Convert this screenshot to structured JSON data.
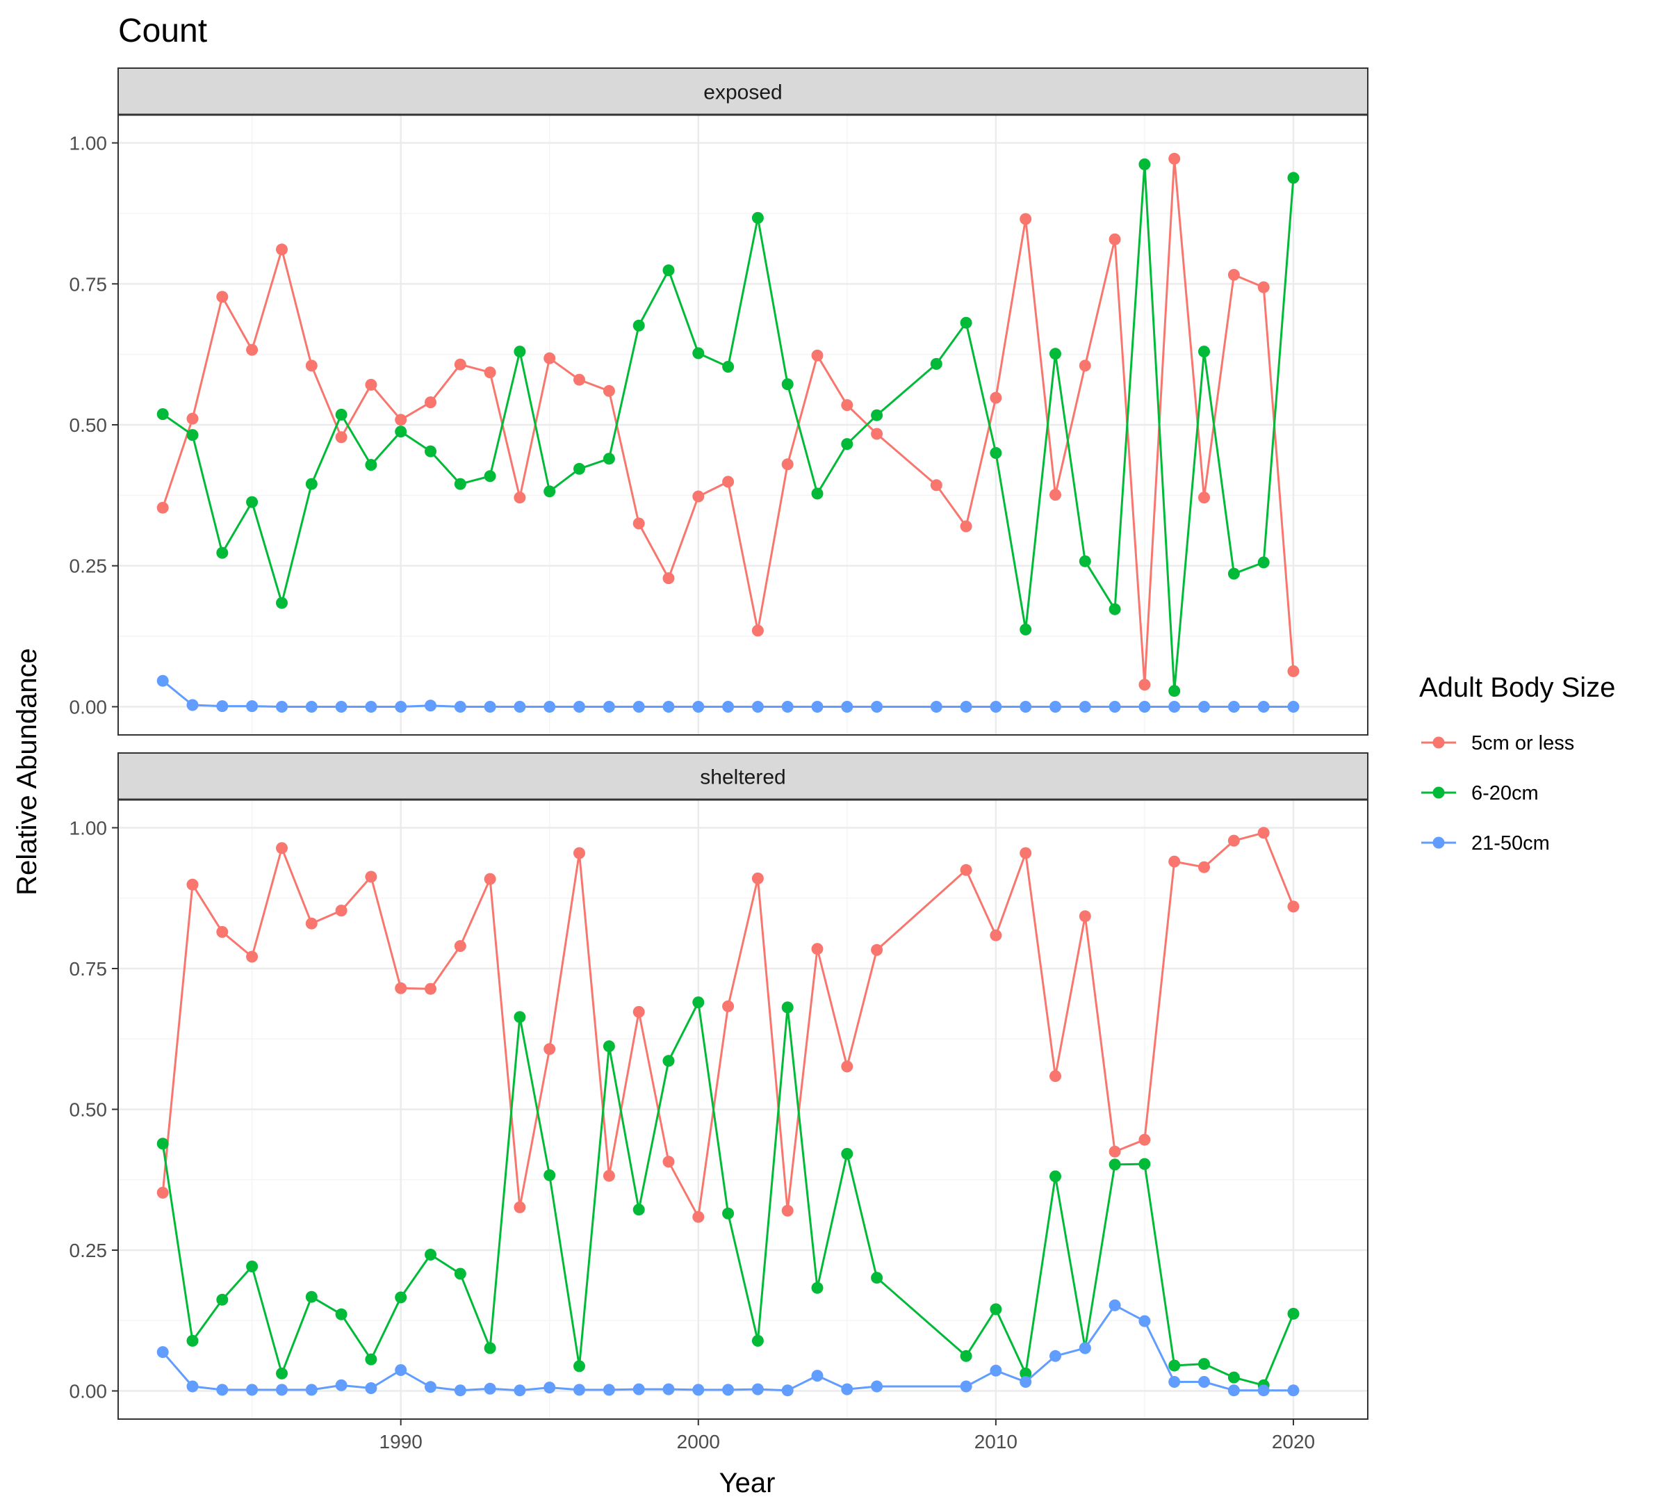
{
  "chart_data": {
    "type": "line",
    "title": "Count",
    "xlabel": "Year",
    "ylabel": "Relative Abundance",
    "xlim": [
      1980.5,
      2022.5
    ],
    "ylim": [
      -0.05,
      1.05
    ],
    "x_ticks": [
      1990,
      2000,
      2010,
      2020
    ],
    "y_ticks": [
      0.0,
      0.25,
      0.5,
      0.75,
      1.0
    ],
    "y_tick_labels": [
      "0.00",
      "0.25",
      "0.50",
      "0.75",
      "1.00"
    ],
    "legend": {
      "title": "Adult Body Size",
      "position": "right",
      "entries": [
        {
          "name": "5cm or less",
          "color": "#F8766D"
        },
        {
          "name": "6-20cm",
          "color": "#00BA38"
        },
        {
          "name": "21-50cm",
          "color": "#619CFF"
        }
      ]
    },
    "grid": true,
    "facets": [
      {
        "label": "exposed",
        "series": [
          {
            "name": "5cm or less",
            "x": [
              1982,
              1983,
              1984,
              1985,
              1986,
              1987,
              1988,
              1989,
              1990,
              1991,
              1992,
              1993,
              1994,
              1995,
              1996,
              1997,
              1998,
              1999,
              2000,
              2001,
              2002,
              2003,
              2004,
              2005,
              2006,
              2008,
              2009,
              2010,
              2011,
              2012,
              2013,
              2014,
              2015,
              2016,
              2017,
              2018,
              2019,
              2020
            ],
            "y": [
              0.353,
              0.511,
              0.727,
              0.633,
              0.811,
              0.605,
              0.478,
              0.571,
              0.509,
              0.54,
              0.607,
              0.593,
              0.371,
              0.618,
              0.58,
              0.56,
              0.325,
              0.228,
              0.373,
              0.399,
              0.135,
              0.43,
              0.623,
              0.535,
              0.484,
              0.393,
              0.32,
              0.548,
              0.865,
              0.376,
              0.605,
              0.829,
              0.039,
              0.972,
              0.371,
              0.766,
              0.744,
              0.063
            ]
          },
          {
            "name": "6-20cm",
            "x": [
              1982,
              1983,
              1984,
              1985,
              1986,
              1987,
              1988,
              1989,
              1990,
              1991,
              1992,
              1993,
              1994,
              1995,
              1996,
              1997,
              1998,
              1999,
              2000,
              2001,
              2002,
              2003,
              2004,
              2005,
              2006,
              2008,
              2009,
              2010,
              2011,
              2012,
              2013,
              2014,
              2015,
              2016,
              2017,
              2018,
              2019,
              2020
            ],
            "y": [
              0.519,
              0.482,
              0.273,
              0.363,
              0.184,
              0.395,
              0.518,
              0.429,
              0.488,
              0.453,
              0.395,
              0.409,
              0.63,
              0.382,
              0.422,
              0.44,
              0.676,
              0.774,
              0.627,
              0.603,
              0.867,
              0.572,
              0.378,
              0.466,
              0.517,
              0.608,
              0.681,
              0.45,
              0.137,
              0.626,
              0.258,
              0.173,
              0.962,
              0.028,
              0.63,
              0.236,
              0.256,
              0.938
            ]
          },
          {
            "name": "21-50cm",
            "x": [
              1982,
              1983,
              1984,
              1985,
              1986,
              1987,
              1988,
              1989,
              1990,
              1991,
              1992,
              1993,
              1994,
              1995,
              1996,
              1997,
              1998,
              1999,
              2000,
              2001,
              2002,
              2003,
              2004,
              2005,
              2006,
              2008,
              2009,
              2010,
              2011,
              2012,
              2013,
              2014,
              2015,
              2016,
              2017,
              2018,
              2019,
              2020
            ],
            "y": [
              0.046,
              0.003,
              0.001,
              0.001,
              0.0,
              0.0,
              0.0,
              0.0,
              0.0,
              0.002,
              0.0,
              0.0,
              0.0,
              0.0,
              0.0,
              0.0,
              0.0,
              0.0,
              0.0,
              0.0,
              0.0,
              0.0,
              0.0,
              0.0,
              0.0,
              0.0,
              0.0,
              0.0,
              0.0,
              0.0,
              0.0,
              0.0,
              0.0,
              0.0,
              0.0,
              0.0,
              0.0,
              0.0
            ]
          }
        ]
      },
      {
        "label": "sheltered",
        "series": [
          {
            "name": "5cm or less",
            "x": [
              1982,
              1983,
              1984,
              1985,
              1986,
              1987,
              1988,
              1989,
              1990,
              1991,
              1992,
              1993,
              1994,
              1995,
              1996,
              1997,
              1998,
              1999,
              2000,
              2001,
              2002,
              2003,
              2004,
              2005,
              2006,
              2009,
              2010,
              2011,
              2012,
              2013,
              2014,
              2015,
              2016,
              2017,
              2018,
              2019,
              2020
            ],
            "y": [
              0.352,
              0.899,
              0.815,
              0.771,
              0.964,
              0.83,
              0.853,
              0.913,
              0.715,
              0.714,
              0.79,
              0.909,
              0.326,
              0.607,
              0.955,
              0.382,
              0.673,
              0.407,
              0.309,
              0.683,
              0.91,
              0.32,
              0.785,
              0.576,
              0.783,
              0.925,
              0.809,
              0.955,
              0.559,
              0.843,
              0.425,
              0.446,
              0.94,
              0.93,
              0.977,
              0.991,
              0.86
            ]
          },
          {
            "name": "6-20cm",
            "x": [
              1982,
              1983,
              1984,
              1985,
              1986,
              1987,
              1988,
              1989,
              1990,
              1991,
              1992,
              1993,
              1994,
              1995,
              1996,
              1997,
              1998,
              1999,
              2000,
              2001,
              2002,
              2003,
              2004,
              2005,
              2006,
              2009,
              2010,
              2011,
              2012,
              2013,
              2014,
              2015,
              2016,
              2017,
              2018,
              2019,
              2020
            ],
            "y": [
              0.439,
              0.089,
              0.162,
              0.221,
              0.031,
              0.167,
              0.136,
              0.056,
              0.166,
              0.242,
              0.208,
              0.076,
              0.664,
              0.383,
              0.044,
              0.612,
              0.322,
              0.586,
              0.69,
              0.315,
              0.089,
              0.681,
              0.183,
              0.421,
              0.201,
              0.062,
              0.145,
              0.031,
              0.381,
              0.076,
              0.402,
              0.403,
              0.045,
              0.048,
              0.024,
              0.01,
              0.137
            ]
          },
          {
            "name": "21-50cm",
            "x": [
              1982,
              1983,
              1984,
              1985,
              1986,
              1987,
              1988,
              1989,
              1990,
              1991,
              1992,
              1993,
              1994,
              1995,
              1996,
              1997,
              1998,
              1999,
              2000,
              2001,
              2002,
              2003,
              2004,
              2005,
              2006,
              2009,
              2010,
              2011,
              2012,
              2013,
              2014,
              2015,
              2016,
              2017,
              2018,
              2019,
              2020
            ],
            "y": [
              0.069,
              0.008,
              0.002,
              0.002,
              0.002,
              0.002,
              0.01,
              0.005,
              0.037,
              0.007,
              0.001,
              0.004,
              0.001,
              0.006,
              0.002,
              0.002,
              0.003,
              0.003,
              0.002,
              0.002,
              0.003,
              0.001,
              0.027,
              0.003,
              0.008,
              0.008,
              0.036,
              0.016,
              0.062,
              0.076,
              0.152,
              0.124,
              0.016,
              0.016,
              0.001,
              0.001,
              0.001
            ]
          }
        ]
      }
    ]
  }
}
